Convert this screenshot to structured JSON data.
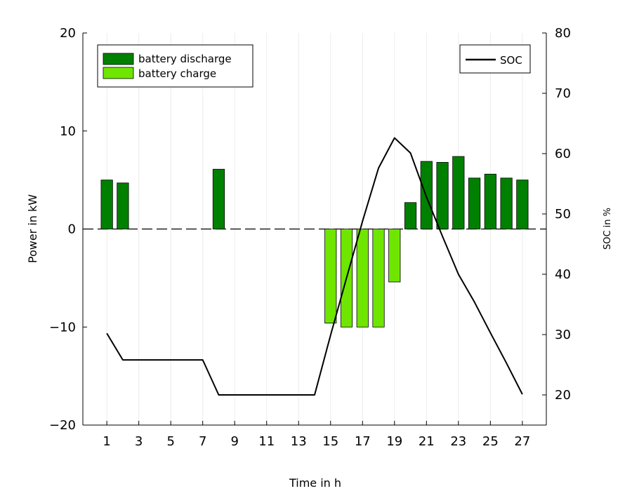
{
  "chart_data": {
    "type": "bar",
    "xlabel": "Time in h",
    "ylabel": "Power in kW",
    "y2label": "SOC in %",
    "xlim": [
      -0.5,
      28.5
    ],
    "ylim": [
      -20,
      20
    ],
    "y2lim": [
      15,
      80
    ],
    "xticks": [
      1,
      3,
      5,
      7,
      9,
      11,
      13,
      15,
      17,
      19,
      21,
      23,
      25,
      27
    ],
    "yticks": [
      -20,
      -10,
      0,
      10,
      20
    ],
    "y2ticks": [
      20,
      30,
      40,
      50,
      60,
      70,
      80
    ],
    "grid": "vertical",
    "colors": {
      "discharge": "#008000",
      "charge": "#6fe600",
      "soc": "#000000"
    },
    "legend_left": {
      "position": "top-left",
      "entries": [
        "battery discharge",
        "battery charge"
      ]
    },
    "legend_right": {
      "position": "top-right",
      "entries": [
        "SOC"
      ]
    },
    "x": [
      1,
      2,
      3,
      4,
      5,
      6,
      7,
      8,
      9,
      10,
      11,
      12,
      13,
      14,
      15,
      16,
      17,
      18,
      19,
      20,
      21,
      22,
      23,
      24,
      25,
      26,
      27
    ],
    "series": [
      {
        "name": "battery discharge",
        "axis": "left",
        "kind": "bar",
        "values": [
          5.0,
          4.7,
          0,
          0,
          0,
          0,
          0,
          6.1,
          0,
          0,
          0,
          0,
          0,
          0,
          0,
          0,
          0,
          0,
          0,
          2.7,
          6.9,
          6.8,
          7.4,
          5.2,
          5.6,
          5.2,
          5.0
        ]
      },
      {
        "name": "battery charge",
        "axis": "left",
        "kind": "bar",
        "values": [
          0,
          0,
          0,
          0,
          0,
          0,
          0,
          0,
          0,
          0,
          0,
          0,
          0,
          0,
          -9.6,
          -10.0,
          -10.0,
          -10.0,
          -5.4,
          0,
          0,
          0,
          0,
          0,
          0,
          0,
          0
        ]
      },
      {
        "name": "SOC",
        "axis": "right",
        "kind": "line",
        "values": [
          30.2,
          25.8,
          25.8,
          25.8,
          25.8,
          25.8,
          25.8,
          20.0,
          20.0,
          20.0,
          20.0,
          20.0,
          20.0,
          20.0,
          29.9,
          39.4,
          48.8,
          57.6,
          62.6,
          60.1,
          52.8,
          46.3,
          40.0,
          35.4,
          30.3,
          25.3,
          20.1
        ]
      }
    ]
  }
}
